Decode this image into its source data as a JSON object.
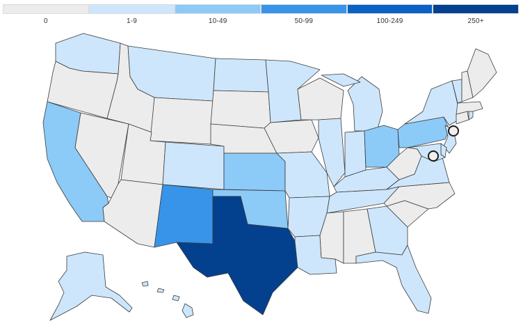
{
  "legend": {
    "bins": [
      {
        "label": "0",
        "color": "#ececec"
      },
      {
        "label": "1-9",
        "color": "#cde6fb"
      },
      {
        "label": "10-49",
        "color": "#8ccaf8"
      },
      {
        "label": "50-99",
        "color": "#3794e9"
      },
      {
        "label": "100-249",
        "color": "#0b62c5"
      },
      {
        "label": "250+",
        "color": "#03418f"
      }
    ]
  },
  "map": {
    "states": [
      {
        "id": "WA",
        "bin": 1
      },
      {
        "id": "OR",
        "bin": 0
      },
      {
        "id": "CA",
        "bin": 2
      },
      {
        "id": "NV",
        "bin": 0
      },
      {
        "id": "ID",
        "bin": 0
      },
      {
        "id": "MT",
        "bin": 1
      },
      {
        "id": "WY",
        "bin": 0
      },
      {
        "id": "UT",
        "bin": 0
      },
      {
        "id": "AZ",
        "bin": 0
      },
      {
        "id": "CO",
        "bin": 1
      },
      {
        "id": "NM",
        "bin": 3
      },
      {
        "id": "ND",
        "bin": 1
      },
      {
        "id": "SD",
        "bin": 0
      },
      {
        "id": "NE",
        "bin": 0
      },
      {
        "id": "KS",
        "bin": 2
      },
      {
        "id": "OK",
        "bin": 2
      },
      {
        "id": "TX",
        "bin": 5
      },
      {
        "id": "MN",
        "bin": 1
      },
      {
        "id": "IA",
        "bin": 0
      },
      {
        "id": "MO",
        "bin": 1
      },
      {
        "id": "AR",
        "bin": 1
      },
      {
        "id": "LA",
        "bin": 1
      },
      {
        "id": "WI",
        "bin": 0
      },
      {
        "id": "IL",
        "bin": 1
      },
      {
        "id": "MI",
        "bin": 1
      },
      {
        "id": "IN",
        "bin": 1
      },
      {
        "id": "OH",
        "bin": 2
      },
      {
        "id": "KY",
        "bin": 1
      },
      {
        "id": "TN",
        "bin": 1
      },
      {
        "id": "MS",
        "bin": 0
      },
      {
        "id": "AL",
        "bin": 0
      },
      {
        "id": "GA",
        "bin": 1
      },
      {
        "id": "FL",
        "bin": 1
      },
      {
        "id": "SC",
        "bin": 0
      },
      {
        "id": "NC",
        "bin": 0
      },
      {
        "id": "VA",
        "bin": 1
      },
      {
        "id": "WV",
        "bin": 0
      },
      {
        "id": "PA",
        "bin": 2
      },
      {
        "id": "NY",
        "bin": 1
      },
      {
        "id": "VT",
        "bin": 1
      },
      {
        "id": "NH",
        "bin": 0
      },
      {
        "id": "ME",
        "bin": 0
      },
      {
        "id": "MA",
        "bin": 0
      },
      {
        "id": "CT",
        "bin": 0
      },
      {
        "id": "RI",
        "bin": 1
      },
      {
        "id": "NJ",
        "bin": 1
      },
      {
        "id": "DE",
        "bin": 1
      },
      {
        "id": "MD",
        "bin": 1
      },
      {
        "id": "AK",
        "bin": 1
      },
      {
        "id": "HI",
        "bin": 1
      }
    ],
    "markers": [
      "new-york-city-marker",
      "washington-dc-marker"
    ]
  }
}
